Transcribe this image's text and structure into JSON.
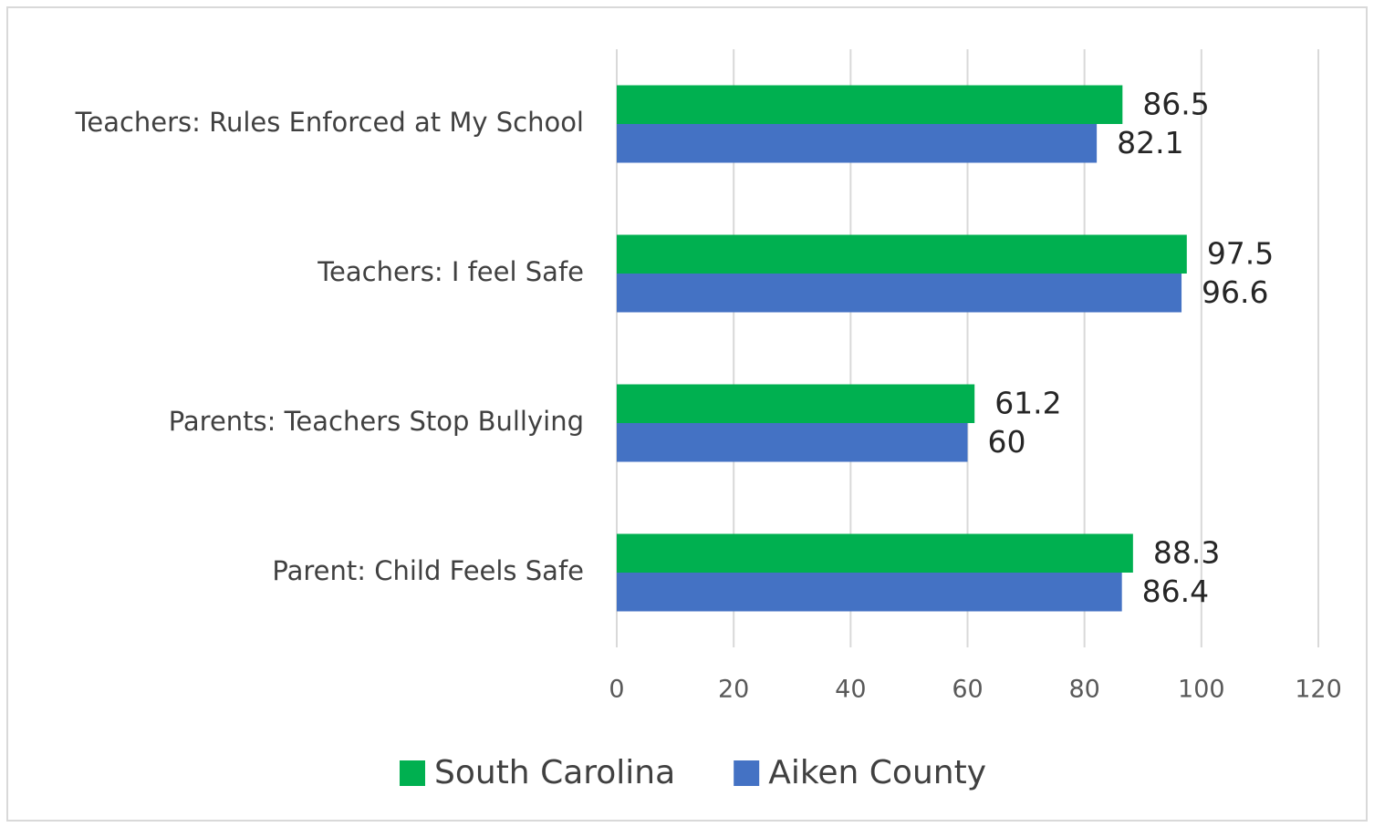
{
  "chart_data": {
    "type": "bar",
    "orientation": "horizontal",
    "categories": [
      "Teachers: Rules Enforced at My School",
      "Teachers: I feel Safe",
      "Parents: Teachers Stop Bullying",
      "Parent: Child Feels Safe"
    ],
    "series": [
      {
        "name": "South Carolina",
        "color": "#00b050",
        "values": [
          86.5,
          97.5,
          61.2,
          88.3
        ]
      },
      {
        "name": "Aiken County",
        "color": "#4472c4",
        "values": [
          82.1,
          96.6,
          60,
          86.4
        ]
      }
    ],
    "xlim": [
      0,
      120
    ],
    "xticks": [
      0,
      20,
      40,
      60,
      80,
      100,
      120
    ],
    "grid": true,
    "legend": "bottom"
  }
}
